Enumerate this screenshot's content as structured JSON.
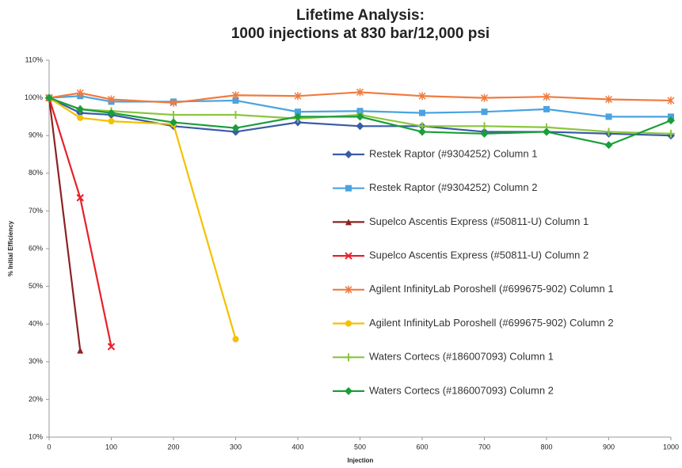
{
  "chart_data": {
    "type": "line",
    "title": [
      "Lifetime Analysis:",
      "1000 injections at 830 bar/12,000 psi"
    ],
    "xlabel": "Injection",
    "ylabel": "% Initial Efficiency",
    "x": [
      0,
      50,
      100,
      200,
      300,
      400,
      500,
      600,
      700,
      800,
      900,
      1000
    ],
    "xlim": [
      0,
      1000
    ],
    "xticks": [
      0,
      100,
      200,
      300,
      400,
      500,
      600,
      700,
      800,
      900,
      1000
    ],
    "ylim": [
      10,
      110
    ],
    "yticks": [
      {
        "value": 10,
        "label": "10%"
      },
      {
        "value": 20,
        "label": "20%"
      },
      {
        "value": 30,
        "label": "30%"
      },
      {
        "value": 40,
        "label": "40%"
      },
      {
        "value": 50,
        "label": "50%"
      },
      {
        "value": 60,
        "label": "60%"
      },
      {
        "value": 70,
        "label": "70%"
      },
      {
        "value": 80,
        "label": "80%"
      },
      {
        "value": 90,
        "label": "90%"
      },
      {
        "value": 100,
        "label": "100%"
      },
      {
        "value": 110,
        "label": "110%"
      }
    ],
    "grid": false,
    "legend": "right",
    "series": [
      {
        "name": "Restek Raptor (#9304252) Column 1",
        "color": "#3a5ba8",
        "marker": "diamond",
        "values": [
          100,
          96,
          95.5,
          92.5,
          91,
          93.5,
          92.5,
          92.5,
          91,
          91,
          90.5,
          90
        ]
      },
      {
        "name": "Restek Raptor (#9304252) Column 2",
        "color": "#4aa3df",
        "marker": "square",
        "values": [
          100,
          100.5,
          99,
          99,
          99.3,
          96.3,
          96.5,
          96,
          96.3,
          97,
          95,
          95
        ]
      },
      {
        "name": "Supelco Ascentis Express (#50811-U) Column 1",
        "color": "#8b2323",
        "marker": "triangle",
        "values": [
          100,
          33,
          null,
          null,
          null,
          null,
          null,
          null,
          null,
          null,
          null,
          null
        ]
      },
      {
        "name": "Supelco Ascentis Express (#50811-U) Column 2",
        "color": "#e8202a",
        "marker": "x",
        "values": [
          100,
          73.5,
          34,
          null,
          null,
          null,
          null,
          null,
          null,
          null,
          null,
          null
        ]
      },
      {
        "name": "Agilent InfinityLab Poroshell (#699675-902) Column 1",
        "color": "#f07b3f",
        "marker": "star",
        "values": [
          100,
          101.3,
          99.6,
          98.7,
          100.7,
          100.5,
          101.5,
          100.5,
          100,
          100.3,
          99.6,
          99.3
        ]
      },
      {
        "name": "Agilent InfinityLab Poroshell (#699675-902) Column 2",
        "color": "#f5c000",
        "marker": "circle",
        "values": [
          100,
          94.7,
          93.8,
          93,
          36,
          null,
          null,
          null,
          null,
          null,
          null,
          null
        ]
      },
      {
        "name": "Waters Cortecs (#186007093) Column 1",
        "color": "#8cc63f",
        "marker": "plus",
        "values": [
          100,
          97,
          96.5,
          95.5,
          95.5,
          94.5,
          95.5,
          92.5,
          92.5,
          92.2,
          91,
          90.5
        ]
      },
      {
        "name": "Waters Cortecs (#186007093) Column 2",
        "color": "#1a9e3a",
        "marker": "diamond",
        "values": [
          100,
          97,
          96,
          93.5,
          92,
          95,
          95,
          91,
          90.5,
          91,
          87.5,
          94
        ]
      }
    ]
  }
}
